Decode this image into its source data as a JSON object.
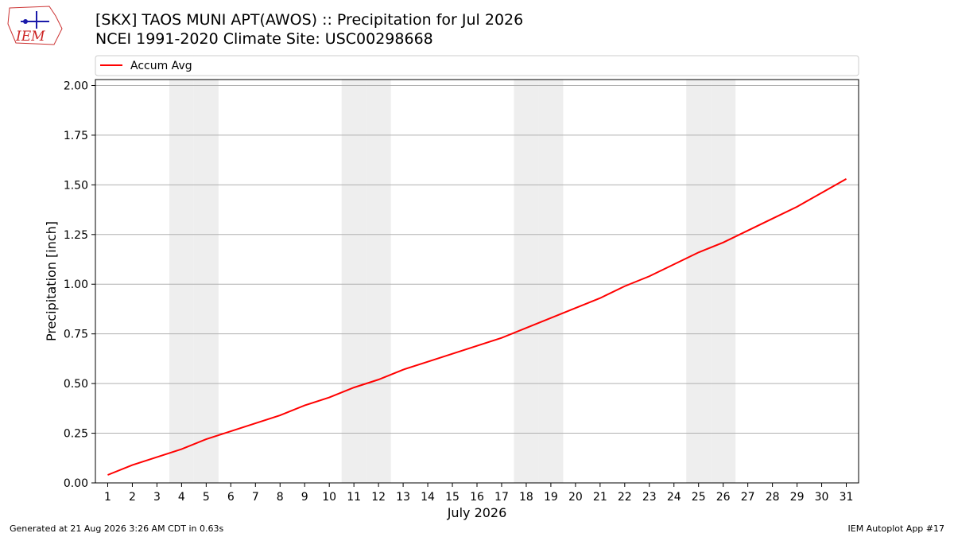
{
  "logo_text": "IEM",
  "footer": {
    "left": "Generated at 21 Aug 2026 3:26 AM CDT in 0.63s",
    "right": "IEM Autoplot App #17"
  },
  "chart_data": {
    "type": "line",
    "title": "[SKX] TAOS MUNI APT(AWOS) :: Precipitation for Jul 2026",
    "subtitle": "NCEI 1991-2020 Climate Site: USC00298668",
    "xlabel": "July 2026",
    "ylabel": "Precipitation [inch]",
    "x": [
      1,
      2,
      3,
      4,
      5,
      6,
      7,
      8,
      9,
      10,
      11,
      12,
      13,
      14,
      15,
      16,
      17,
      18,
      19,
      20,
      21,
      22,
      23,
      24,
      25,
      26,
      27,
      28,
      29,
      30,
      31
    ],
    "series": [
      {
        "name": "Accum Avg",
        "color": "#ff0000",
        "values": [
          0.04,
          0.09,
          0.13,
          0.17,
          0.22,
          0.26,
          0.3,
          0.34,
          0.39,
          0.43,
          0.48,
          0.52,
          0.57,
          0.61,
          0.65,
          0.69,
          0.73,
          0.78,
          0.83,
          0.88,
          0.93,
          0.99,
          1.04,
          1.1,
          1.16,
          1.21,
          1.27,
          1.33,
          1.39,
          1.46,
          1.53
        ]
      }
    ],
    "shaded_days": [
      4,
      5,
      11,
      12,
      18,
      19,
      25,
      26
    ],
    "shade_color": "#eeeeee",
    "xlim": [
      0.5,
      31.5
    ],
    "xticks": [
      1,
      2,
      3,
      4,
      5,
      6,
      7,
      8,
      9,
      10,
      11,
      12,
      13,
      14,
      15,
      16,
      17,
      18,
      19,
      20,
      21,
      22,
      23,
      24,
      25,
      26,
      27,
      28,
      29,
      30,
      31
    ],
    "ylim": [
      0,
      2.03
    ],
    "yticks": [
      {
        "value": 0,
        "label": "0.00"
      },
      {
        "value": 0.25,
        "label": "0.25"
      },
      {
        "value": 0.5,
        "label": "0.50"
      },
      {
        "value": 0.75,
        "label": "0.75"
      },
      {
        "value": 1,
        "label": "1.00"
      },
      {
        "value": 1.25,
        "label": "1.25"
      },
      {
        "value": 1.5,
        "label": "1.50"
      },
      {
        "value": 1.75,
        "label": "1.75"
      },
      {
        "value": 2,
        "label": "2.00"
      }
    ],
    "grid": true
  }
}
